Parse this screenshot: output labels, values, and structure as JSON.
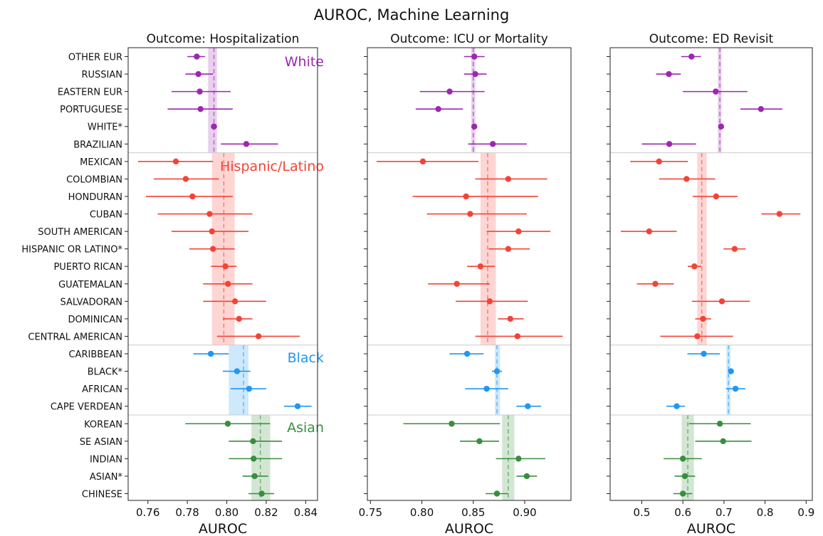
{
  "figure_title": "AUROC, Machine Learning",
  "colors": {
    "White": "#9c27b0",
    "Hispanic/Latino": "#f44336",
    "Black": "#2196f3",
    "Asian": "#388e3c"
  },
  "chart_data": [
    {
      "type": "scatter",
      "title": "Outcome: Hospitalization",
      "xlabel": "AUROC",
      "ylabel": "",
      "xlim": [
        0.75,
        0.846
      ],
      "xticks": [
        0.76,
        0.78,
        0.8,
        0.82,
        0.84
      ],
      "xtick_labels": [
        "0.76",
        "0.78",
        "0.80",
        "0.82",
        "0.84"
      ],
      "categories": [
        "OTHER EUR",
        "RUSSIAN",
        "EASTERN EUR",
        "PORTUGUESE",
        "WHITE*",
        "BRAZILIAN",
        "MEXICAN",
        "COLOMBIAN",
        "HONDURAN",
        "CUBAN",
        "SOUTH AMERICAN",
        "HISPANIC OR LATINO*",
        "PUERTO RICAN",
        "GUATEMALAN",
        "SALVADORAN",
        "DOMINICAN",
        "CENTRAL AMERICAN",
        "CARIBBEAN",
        "BLACK*",
        "AFRICAN",
        "CAPE VERDEAN",
        "KOREAN",
        "SE ASIAN",
        "INDIAN",
        "ASIAN*",
        "CHINESE"
      ],
      "groups": [
        {
          "name": "White",
          "label": "White",
          "mean": 0.7935,
          "band": [
            0.7905,
            0.795
          ],
          "points": [
            {
              "category": "OTHER EUR",
              "value": 0.7848,
              "ci": [
                0.78,
                0.789
              ]
            },
            {
              "category": "RUSSIAN",
              "value": 0.7856,
              "ci": [
                0.779,
                0.793
              ]
            },
            {
              "category": "EASTERN EUR",
              "value": 0.7863,
              "ci": [
                0.772,
                0.802
              ]
            },
            {
              "category": "PORTUGUESE",
              "value": 0.7867,
              "ci": [
                0.77,
                0.803
              ]
            },
            {
              "category": "WHITE*",
              "value": 0.7935,
              "ci": [
                0.792,
                0.795
              ]
            },
            {
              "category": "BRAZILIAN",
              "value": 0.8099,
              "ci": [
                0.797,
                0.826
              ]
            }
          ]
        },
        {
          "name": "Hispanic/Latino",
          "label": "Hispanic/Latino",
          "mean": 0.7985,
          "band": [
            0.7925,
            0.804
          ],
          "points": [
            {
              "category": "MEXICAN",
              "value": 0.7742,
              "ci": [
                0.755,
                0.793
              ]
            },
            {
              "category": "COLOMBIAN",
              "value": 0.7792,
              "ci": [
                0.763,
                0.796
              ]
            },
            {
              "category": "HONDURAN",
              "value": 0.7826,
              "ci": [
                0.759,
                0.803
              ]
            },
            {
              "category": "CUBAN",
              "value": 0.7913,
              "ci": [
                0.765,
                0.813
              ]
            },
            {
              "category": "SOUTH AMERICAN",
              "value": 0.7925,
              "ci": [
                0.772,
                0.811
              ]
            },
            {
              "category": "HISPANIC OR LATINO*",
              "value": 0.793,
              "ci": [
                0.781,
                0.804
              ]
            },
            {
              "category": "PUERTO RICAN",
              "value": 0.7993,
              "ci": [
                0.792,
                0.805
              ]
            },
            {
              "category": "GUATEMALAN",
              "value": 0.8006,
              "ci": [
                0.788,
                0.813
              ]
            },
            {
              "category": "SALVADORAN",
              "value": 0.8042,
              "ci": [
                0.788,
                0.82
              ]
            },
            {
              "category": "DOMINICAN",
              "value": 0.8062,
              "ci": [
                0.798,
                0.813
              ]
            },
            {
              "category": "CENTRAL AMERICAN",
              "value": 0.8161,
              "ci": [
                0.795,
                0.837
              ]
            }
          ]
        },
        {
          "name": "Black",
          "label": "Black",
          "mean": 0.8085,
          "band": [
            0.801,
            0.811
          ],
          "points": [
            {
              "category": "CARIBBEAN",
              "value": 0.7919,
              "ci": [
                0.783,
                0.801
              ]
            },
            {
              "category": "BLACK*",
              "value": 0.8052,
              "ci": [
                0.798,
                0.812
              ]
            },
            {
              "category": "AFRICAN",
              "value": 0.8113,
              "ci": [
                0.802,
                0.82
              ]
            },
            {
              "category": "CAPE VERDEAN",
              "value": 0.8359,
              "ci": [
                0.829,
                0.843
              ]
            }
          ]
        },
        {
          "name": "Asian",
          "label": "Asian",
          "mean": 0.817,
          "band": [
            0.8125,
            0.822
          ],
          "points": [
            {
              "category": "KOREAN",
              "value": 0.8005,
              "ci": [
                0.779,
                0.822
              ]
            },
            {
              "category": "SE ASIAN",
              "value": 0.8133,
              "ci": [
                0.801,
                0.828
              ]
            },
            {
              "category": "INDIAN",
              "value": 0.8136,
              "ci": [
                0.801,
                0.828
              ]
            },
            {
              "category": "ASIAN*",
              "value": 0.8141,
              "ci": [
                0.808,
                0.821
              ]
            },
            {
              "category": "CHINESE",
              "value": 0.8177,
              "ci": [
                0.811,
                0.824
              ]
            }
          ]
        }
      ]
    },
    {
      "type": "scatter",
      "title": "Outcome: ICU or Mortality",
      "xlabel": "AUROC",
      "ylabel": "",
      "xlim": [
        0.747,
        0.945
      ],
      "xticks": [
        0.75,
        0.8,
        0.85,
        0.9
      ],
      "xtick_labels": [
        "0.75",
        "0.80",
        "0.85",
        "0.90"
      ],
      "categories": [
        "OTHER EUR",
        "RUSSIAN",
        "EASTERN EUR",
        "PORTUGUESE",
        "WHITE*",
        "BRAZILIAN",
        "MEXICAN",
        "COLOMBIAN",
        "HONDURAN",
        "CUBAN",
        "SOUTH AMERICAN",
        "HISPANIC OR LATINO*",
        "PUERTO RICAN",
        "GUATEMALAN",
        "SALVADORAN",
        "DOMINICAN",
        "CENTRAL AMERICAN",
        "CARIBBEAN",
        "BLACK*",
        "AFRICAN",
        "CAPE VERDEAN",
        "KOREAN",
        "SE ASIAN",
        "INDIAN",
        "ASIAN*",
        "CHINESE"
      ],
      "groups": [
        {
          "name": "White",
          "label": "",
          "mean": 0.85,
          "band": [
            0.848,
            0.852
          ],
          "points": [
            {
              "category": "OTHER EUR",
              "value": 0.851,
              "ci": [
                0.841,
                0.861
              ]
            },
            {
              "category": "RUSSIAN",
              "value": 0.852,
              "ci": [
                0.841,
                0.863
              ]
            },
            {
              "category": "EASTERN EUR",
              "value": 0.827,
              "ci": [
                0.798,
                0.861
              ]
            },
            {
              "category": "PORTUGUESE",
              "value": 0.816,
              "ci": [
                0.794,
                0.84
              ]
            },
            {
              "category": "WHITE*",
              "value": 0.851,
              "ci": [
                0.849,
                0.853
              ]
            },
            {
              "category": "BRAZILIAN",
              "value": 0.869,
              "ci": [
                0.845,
                0.902
              ]
            }
          ]
        },
        {
          "name": "Hispanic/Latino",
          "label": "",
          "mean": 0.864,
          "band": [
            0.857,
            0.872
          ],
          "points": [
            {
              "category": "MEXICAN",
              "value": 0.801,
              "ci": [
                0.756,
                0.855
              ]
            },
            {
              "category": "COLOMBIAN",
              "value": 0.884,
              "ci": [
                0.852,
                0.922
              ]
            },
            {
              "category": "HONDURAN",
              "value": 0.843,
              "ci": [
                0.791,
                0.913
              ]
            },
            {
              "category": "CUBAN",
              "value": 0.847,
              "ci": [
                0.805,
                0.902
              ]
            },
            {
              "category": "SOUTH AMERICAN",
              "value": 0.894,
              "ci": [
                0.863,
                0.925
              ]
            },
            {
              "category": "HISPANIC OR LATINO*",
              "value": 0.884,
              "ci": [
                0.865,
                0.905
              ]
            },
            {
              "category": "PUERTO RICAN",
              "value": 0.857,
              "ci": [
                0.844,
                0.871
              ]
            },
            {
              "category": "GUATEMALAN",
              "value": 0.834,
              "ci": [
                0.806,
                0.866
              ]
            },
            {
              "category": "SALVADORAN",
              "value": 0.866,
              "ci": [
                0.833,
                0.903
              ]
            },
            {
              "category": "DOMINICAN",
              "value": 0.886,
              "ci": [
                0.874,
                0.899
              ]
            },
            {
              "category": "CENTRAL AMERICAN",
              "value": 0.893,
              "ci": [
                0.852,
                0.937
              ]
            }
          ]
        },
        {
          "name": "Black",
          "label": "",
          "mean": 0.873,
          "band": [
            0.871,
            0.876
          ],
          "points": [
            {
              "category": "CARIBBEAN",
              "value": 0.844,
              "ci": [
                0.827,
                0.86
              ]
            },
            {
              "category": "BLACK*",
              "value": 0.873,
              "ci": [
                0.868,
                0.878
              ]
            },
            {
              "category": "AFRICAN",
              "value": 0.863,
              "ci": [
                0.842,
                0.884
              ]
            },
            {
              "category": "CAPE VERDEAN",
              "value": 0.903,
              "ci": [
                0.892,
                0.916
              ]
            }
          ]
        },
        {
          "name": "Asian",
          "label": "",
          "mean": 0.884,
          "band": [
            0.878,
            0.89
          ],
          "points": [
            {
              "category": "KOREAN",
              "value": 0.829,
              "ci": [
                0.782,
                0.876
              ]
            },
            {
              "category": "SE ASIAN",
              "value": 0.856,
              "ci": [
                0.837,
                0.875
              ]
            },
            {
              "category": "INDIAN",
              "value": 0.894,
              "ci": [
                0.872,
                0.92
              ]
            },
            {
              "category": "ASIAN*",
              "value": 0.902,
              "ci": [
                0.892,
                0.912
              ]
            },
            {
              "category": "CHINESE",
              "value": 0.873,
              "ci": [
                0.862,
                0.884
              ]
            }
          ]
        }
      ]
    },
    {
      "type": "scatter",
      "title": "Outcome: ED Revisit",
      "xlabel": "AUROC",
      "ylabel": "",
      "xlim": [
        0.423,
        0.915
      ],
      "xticks": [
        0.5,
        0.6,
        0.7,
        0.8,
        0.9
      ],
      "xtick_labels": [
        "0.5",
        "0.6",
        "0.7",
        "0.8",
        "0.9"
      ],
      "categories": [
        "OTHER EUR",
        "RUSSIAN",
        "EASTERN EUR",
        "PORTUGUESE",
        "WHITE*",
        "BRAZILIAN",
        "MEXICAN",
        "COLOMBIAN",
        "HONDURAN",
        "CUBAN",
        "SOUTH AMERICAN",
        "HISPANIC OR LATINO*",
        "PUERTO RICAN",
        "GUATEMALAN",
        "SALVADORAN",
        "DOMINICAN",
        "CENTRAL AMERICAN",
        "CARIBBEAN",
        "BLACK*",
        "AFRICAN",
        "CAPE VERDEAN",
        "KOREAN",
        "SE ASIAN",
        "INDIAN",
        "ASIAN*",
        "CHINESE"
      ],
      "groups": [
        {
          "name": "White",
          "label": "",
          "mean": 0.69,
          "band": [
            0.685,
            0.694
          ],
          "points": [
            {
              "category": "OTHER EUR",
              "value": 0.621,
              "ci": [
                0.596,
                0.644
              ]
            },
            {
              "category": "RUSSIAN",
              "value": 0.566,
              "ci": [
                0.535,
                0.595
              ]
            },
            {
              "category": "EASTERN EUR",
              "value": 0.68,
              "ci": [
                0.6,
                0.757
              ]
            },
            {
              "category": "PORTUGUESE",
              "value": 0.79,
              "ci": [
                0.74,
                0.842
              ]
            },
            {
              "category": "WHITE*",
              "value": 0.693,
              "ci": [
                0.689,
                0.697
              ]
            },
            {
              "category": "BRAZILIAN",
              "value": 0.567,
              "ci": [
                0.5,
                0.632
              ]
            }
          ]
        },
        {
          "name": "Hispanic/Latino",
          "label": "",
          "mean": 0.646,
          "band": [
            0.635,
            0.658
          ],
          "points": [
            {
              "category": "MEXICAN",
              "value": 0.542,
              "ci": [
                0.472,
                0.612
              ]
            },
            {
              "category": "COLOMBIAN",
              "value": 0.609,
              "ci": [
                0.542,
                0.679
              ]
            },
            {
              "category": "HONDURAN",
              "value": 0.681,
              "ci": [
                0.624,
                0.733
              ]
            },
            {
              "category": "CUBAN",
              "value": 0.835,
              "ci": [
                0.791,
                0.886
              ]
            },
            {
              "category": "SOUTH AMERICAN",
              "value": 0.518,
              "ci": [
                0.449,
                0.585
              ]
            },
            {
              "category": "HISPANIC OR LATINO*",
              "value": 0.726,
              "ci": [
                0.699,
                0.753
              ]
            },
            {
              "category": "PUERTO RICAN",
              "value": 0.628,
              "ci": [
                0.612,
                0.645
              ]
            },
            {
              "category": "GUATEMALAN",
              "value": 0.533,
              "ci": [
                0.488,
                0.578
              ]
            },
            {
              "category": "SALVADORAN",
              "value": 0.695,
              "ci": [
                0.622,
                0.763
              ]
            },
            {
              "category": "DOMINICAN",
              "value": 0.649,
              "ci": [
                0.63,
                0.669
              ]
            },
            {
              "category": "CENTRAL AMERICAN",
              "value": 0.635,
              "ci": [
                0.545,
                0.722
              ]
            }
          ]
        },
        {
          "name": "Black",
          "label": "",
          "mean": 0.711,
          "band": [
            0.706,
            0.716
          ],
          "points": [
            {
              "category": "CARIBBEAN",
              "value": 0.651,
              "ci": [
                0.611,
                0.69
              ]
            },
            {
              "category": "BLACK*",
              "value": 0.717,
              "ci": [
                0.711,
                0.722
              ]
            },
            {
              "category": "AFRICAN",
              "value": 0.728,
              "ci": [
                0.705,
                0.752
              ]
            },
            {
              "category": "CAPE VERDEAN",
              "value": 0.585,
              "ci": [
                0.56,
                0.605
              ]
            }
          ]
        },
        {
          "name": "Asian",
          "label": "",
          "mean": 0.612,
          "band": [
            0.597,
            0.627
          ],
          "points": [
            {
              "category": "KOREAN",
              "value": 0.69,
              "ci": [
                0.615,
                0.765
              ]
            },
            {
              "category": "SE ASIAN",
              "value": 0.698,
              "ci": [
                0.63,
                0.767
              ]
            },
            {
              "category": "INDIAN",
              "value": 0.6,
              "ci": [
                0.553,
                0.646
              ]
            },
            {
              "category": "ASIAN*",
              "value": 0.605,
              "ci": [
                0.58,
                0.63
              ]
            },
            {
              "category": "CHINESE",
              "value": 0.6,
              "ci": [
                0.577,
                0.623
              ]
            }
          ]
        }
      ]
    }
  ]
}
